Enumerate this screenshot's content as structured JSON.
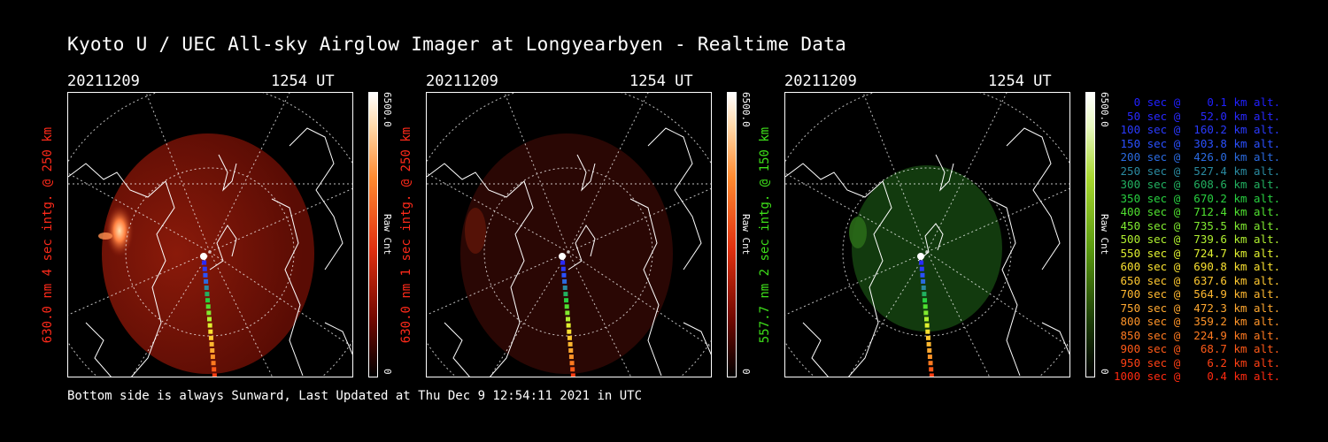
{
  "title": "Kyoto U / UEC All-sky Airglow Imager at Longyearbyen - Realtime Data",
  "footer": "Bottom side is always Sunward, Last Updated at Thu Dec  9 12:54:11 2021 in UTC",
  "panels": [
    {
      "date": "20211209",
      "time": "1254 UT",
      "ylabel": "630.0 nm 4 sec intg. @ 250 km",
      "label_color": "#ff2a1a",
      "cbar_max": "6500.0",
      "cbar_unit": "Raw Cnt",
      "cbar_min": "0",
      "cbar_gradient": "linear-gradient(to bottom,#ffffff 0%,#ffd8a8 12%,#ff8a30 30%,#e03010 55%,#700800 80%,#000 100%)"
    },
    {
      "date": "20211209",
      "time": "1254 UT",
      "ylabel": "630.0 nm 1 sec intg. @ 250 km",
      "label_color": "#ff2a1a",
      "cbar_max": "6500.0",
      "cbar_unit": "Raw Cnt",
      "cbar_min": "0",
      "cbar_gradient": "linear-gradient(to bottom,#ffffff 0%,#ffd8a8 12%,#ff8a30 30%,#e03010 55%,#700800 80%,#000 100%)"
    },
    {
      "date": "20211209",
      "time": "1254 UT",
      "ylabel": "557.7 nm 2 sec intg. @ 150 km",
      "label_color": "#3ee01a",
      "cbar_max": "6500.0",
      "cbar_unit": "Raw Cnt",
      "cbar_min": "0",
      "cbar_gradient": "linear-gradient(to bottom,#ffffff 0%,#e8f8c0 12%,#a8d830 30%,#5a9a10 55%,#1e4008 80%,#000 100%)"
    }
  ],
  "legend": [
    {
      "text": "   0 sec @    0.1 km alt.",
      "color": "#2020ff"
    },
    {
      "text": "  50 sec @   52.0 km alt.",
      "color": "#2828ff"
    },
    {
      "text": " 100 sec @  160.2 km alt.",
      "color": "#2a3aff"
    },
    {
      "text": " 150 sec @  303.8 km alt.",
      "color": "#2a50ff"
    },
    {
      "text": " 200 sec @  426.0 km alt.",
      "color": "#2a6ae0"
    },
    {
      "text": " 250 sec @  527.4 km alt.",
      "color": "#2a8aa0"
    },
    {
      "text": " 300 sec @  608.6 km alt.",
      "color": "#22b060"
    },
    {
      "text": " 350 sec @  670.2 km alt.",
      "color": "#28d040"
    },
    {
      "text": " 400 sec @  712.4 km alt.",
      "color": "#50e030"
    },
    {
      "text": " 450 sec @  735.5 km alt.",
      "color": "#80ea30"
    },
    {
      "text": " 500 sec @  739.6 km alt.",
      "color": "#b0f030"
    },
    {
      "text": " 550 sec @  724.7 km alt.",
      "color": "#e0f030"
    },
    {
      "text": " 600 sec @  690.8 km alt.",
      "color": "#f8e030"
    },
    {
      "text": " 650 sec @  637.6 km alt.",
      "color": "#ffc830"
    },
    {
      "text": " 700 sec @  564.9 km alt.",
      "color": "#ffb830"
    },
    {
      "text": " 750 sec @  472.3 km alt.",
      "color": "#ffa830"
    },
    {
      "text": " 800 sec @  359.2 km alt.",
      "color": "#ff9428"
    },
    {
      "text": " 850 sec @  224.9 km alt.",
      "color": "#ff7a20"
    },
    {
      "text": " 900 sec @   68.7 km alt.",
      "color": "#ff5a18"
    },
    {
      "text": " 950 sec @    6.2 km alt.",
      "color": "#ff4014"
    },
    {
      "text": "1000 sec @    0.4 km alt.",
      "color": "#ff2a10"
    }
  ]
}
